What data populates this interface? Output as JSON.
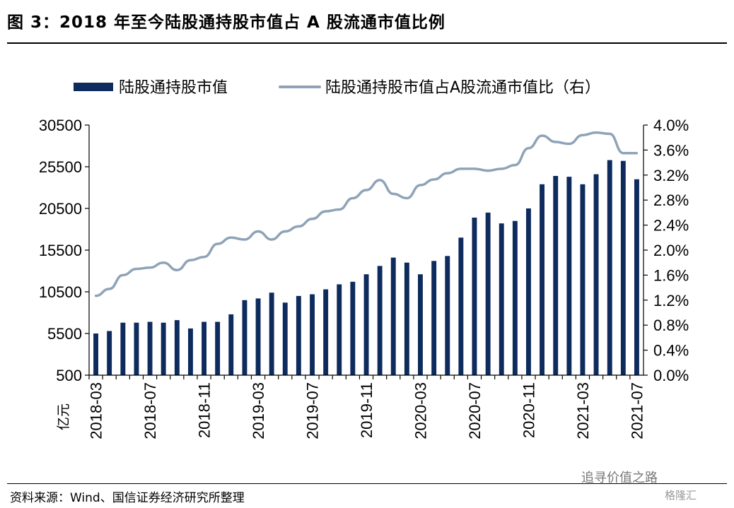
{
  "header": {
    "title": "图 3：2018 年至今陆股通持股市值占 A 股流通市值比例"
  },
  "footer": {
    "source": "资料来源：Wind、国信证券经济研究所整理",
    "watermark": "追寻价值之路",
    "watermark2": "格隆汇"
  },
  "chart_data": {
    "type": "bar",
    "title": "",
    "unit_label": "亿元",
    "x": [
      "2018-03",
      "2018-04",
      "2018-05",
      "2018-06",
      "2018-07",
      "2018-08",
      "2018-09",
      "2018-10",
      "2018-11",
      "2018-12",
      "2019-01",
      "2019-02",
      "2019-03",
      "2019-04",
      "2019-05",
      "2019-06",
      "2019-07",
      "2019-08",
      "2019-09",
      "2019-10",
      "2019-11",
      "2019-12",
      "2020-01",
      "2020-02",
      "2020-03",
      "2020-04",
      "2020-05",
      "2020-06",
      "2020-07",
      "2020-08",
      "2020-09",
      "2020-10",
      "2020-11",
      "2020-12",
      "2021-01",
      "2021-02",
      "2021-03",
      "2021-04",
      "2021-05",
      "2021-06",
      "2021-07"
    ],
    "x_tick_labels": [
      "2018-03",
      "2018-07",
      "2018-11",
      "2019-03",
      "2019-07",
      "2019-11",
      "2020-03",
      "2020-07",
      "2020-11",
      "2021-03",
      "2021-07"
    ],
    "series": [
      {
        "name": "陆股通持股市值",
        "type": "bar",
        "axis": "left",
        "color": "#0d2b5c",
        "values": [
          5500,
          5800,
          6800,
          6800,
          6900,
          6800,
          7100,
          6100,
          6900,
          6900,
          7800,
          9500,
          9700,
          10400,
          9200,
          10000,
          10200,
          10800,
          11400,
          11700,
          12600,
          13600,
          14600,
          14000,
          12600,
          14200,
          14800,
          17000,
          19400,
          20000,
          18700,
          19000,
          20500,
          23400,
          24400,
          24300,
          23400,
          24600,
          26300,
          26200,
          24000
        ]
      },
      {
        "name": "陆股通持股市值占A股流通市值比（右）",
        "type": "line",
        "axis": "right",
        "color": "#8fa3b8",
        "values": [
          1.27,
          1.38,
          1.6,
          1.7,
          1.72,
          1.8,
          1.68,
          1.84,
          1.89,
          2.1,
          2.2,
          2.17,
          2.3,
          2.17,
          2.3,
          2.38,
          2.5,
          2.62,
          2.65,
          2.83,
          2.96,
          3.12,
          2.9,
          2.83,
          3.04,
          3.13,
          3.23,
          3.3,
          3.3,
          3.27,
          3.3,
          3.36,
          3.63,
          3.83,
          3.73,
          3.7,
          3.84,
          3.88,
          3.86,
          3.55,
          3.55
        ]
      }
    ],
    "y_left": {
      "min": 500,
      "max": 30500,
      "ticks": [
        500,
        5500,
        10500,
        15500,
        20500,
        25500,
        30500
      ]
    },
    "y_right": {
      "min": 0,
      "max": 4.0,
      "ticks": [
        "0.0%",
        "0.4%",
        "0.8%",
        "1.2%",
        "1.6%",
        "2.0%",
        "2.4%",
        "2.8%",
        "3.2%",
        "3.6%",
        "4.0%"
      ]
    },
    "legend_position": "top",
    "grid": false
  }
}
